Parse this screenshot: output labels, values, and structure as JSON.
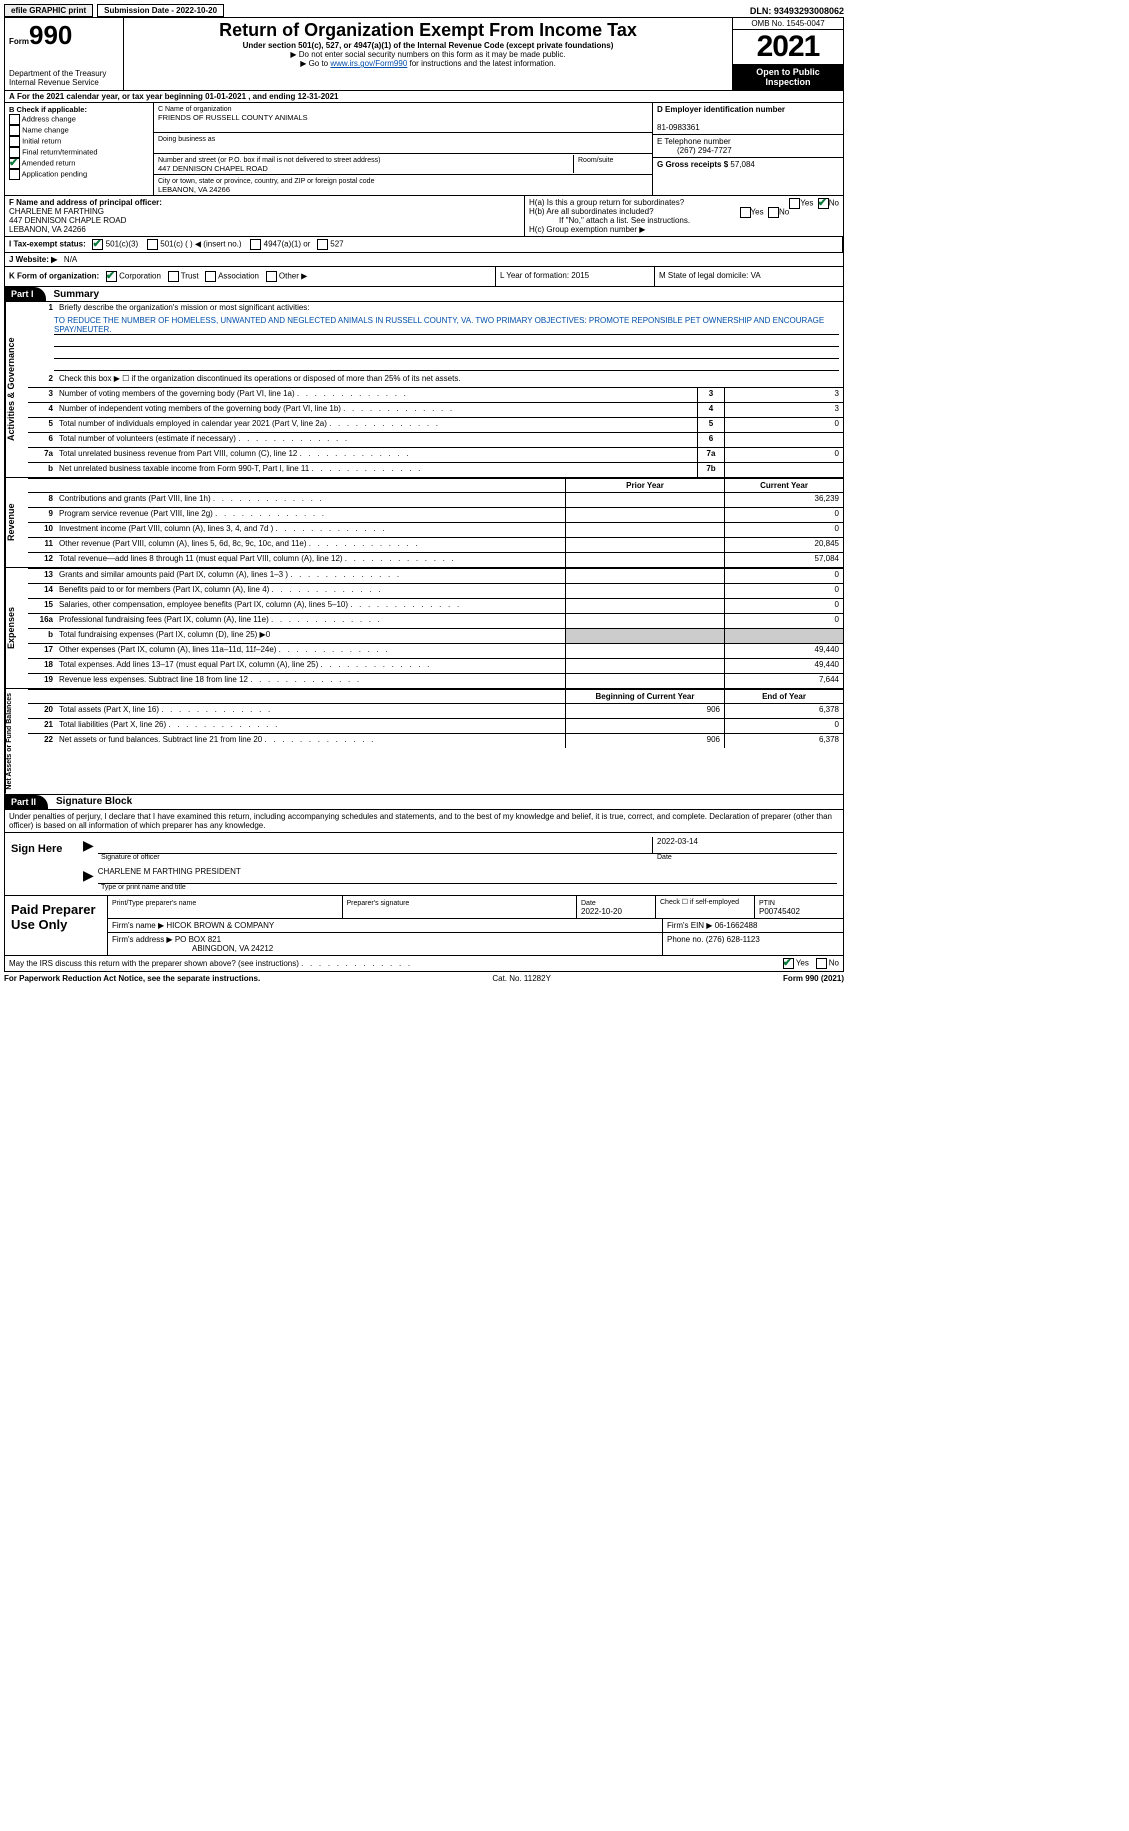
{
  "topbar": {
    "efile": "efile GRAPHIC print",
    "submission": "Submission Date - 2022-10-20",
    "dln": "DLN: 93493293008062"
  },
  "header": {
    "form_label": "Form",
    "form_num": "990",
    "dept": "Department of the Treasury",
    "irs": "Internal Revenue Service",
    "title": "Return of Organization Exempt From Income Tax",
    "sub1": "Under section 501(c), 527, or 4947(a)(1) of the Internal Revenue Code (except private foundations)",
    "sub2": "Do not enter social security numbers on this form as it may be made public.",
    "sub3_a": "Go to ",
    "sub3_link": "www.irs.gov/Form990",
    "sub3_b": " for instructions and the latest information.",
    "omb": "OMB No. 1545-0047",
    "year": "2021",
    "open": "Open to Public Inspection"
  },
  "lineA": "For the 2021 calendar year, or tax year beginning 01-01-2021    , and ending 12-31-2021",
  "boxB": {
    "title": "B Check if applicable:",
    "opts": [
      "Address change",
      "Name change",
      "Initial return",
      "Final return/terminated",
      "Amended return",
      "Application pending"
    ],
    "checked_idx": 4
  },
  "boxC": {
    "lbl_name": "C Name of organization",
    "name": "FRIENDS OF RUSSELL COUNTY ANIMALS",
    "lbl_dba": "Doing business as",
    "dba": "",
    "lbl_addr": "Number and street (or P.O. box if mail is not delivered to street address)",
    "addr": "447 DENNISON CHAPEL ROAD",
    "lbl_room": "Room/suite",
    "lbl_city": "City or town, state or province, country, and ZIP or foreign postal code",
    "city": "LEBANON, VA  24266"
  },
  "boxD": {
    "lbl": "D Employer identification number",
    "val": "81-0983361"
  },
  "boxE": {
    "lbl": "E Telephone number",
    "val": "(267) 294-7727"
  },
  "boxG": {
    "lbl": "G Gross receipts $",
    "val": "57,084"
  },
  "boxF": {
    "lbl": "F Name and address of principal officer:",
    "name": "CHARLENE M FARTHING",
    "addr1": "447 DENNISON CHAPLE ROAD",
    "addr2": "LEBANON, VA  24266"
  },
  "boxH": {
    "a": "H(a)  Is this a group return for subordinates?",
    "a_no": true,
    "b": "H(b)  Are all subordinates included?",
    "note": "If \"No,\" attach a list. See instructions.",
    "c": "H(c)  Group exemption number ▶"
  },
  "rowI": {
    "lbl": "I   Tax-exempt status:",
    "opts": [
      "501(c)(3)",
      "501(c) (  ) ◀ (insert no.)",
      "4947(a)(1) or",
      "527"
    ]
  },
  "rowJ": {
    "lbl": "J   Website: ▶",
    "val": "N/A"
  },
  "rowK": {
    "lbl": "K Form of organization:",
    "opts": [
      "Corporation",
      "Trust",
      "Association",
      "Other ▶"
    ],
    "L": "L Year of formation: 2015",
    "M": "M State of legal domicile: VA"
  },
  "part1": {
    "num": "Part I",
    "title": "Summary"
  },
  "tabs": [
    "Activities & Governance",
    "Revenue",
    "Expenses",
    "Net Assets or Fund Balances"
  ],
  "p1": {
    "l1": "Briefly describe the organization's mission or most significant activities:",
    "mission": "TO REDUCE THE NUMBER OF HOMELESS, UNWANTED AND NEGLECTED ANIMALS IN RUSSELL COUNTY, VA. TWO PRIMARY OBJECTIVES: PROMOTE REPONSIBLE PET OWNERSHIP AND ENCOURAGE SPAY/NEUTER.",
    "l2": "Check this box ▶ ☐ if the organization discontinued its operations or disposed of more than 25% of its net assets.",
    "rows_a": [
      {
        "n": "3",
        "t": "Number of voting members of the governing body (Part VI, line 1a)",
        "b": "3",
        "v": "3"
      },
      {
        "n": "4",
        "t": "Number of independent voting members of the governing body (Part VI, line 1b)",
        "b": "4",
        "v": "3"
      },
      {
        "n": "5",
        "t": "Total number of individuals employed in calendar year 2021 (Part V, line 2a)",
        "b": "5",
        "v": "0"
      },
      {
        "n": "6",
        "t": "Total number of volunteers (estimate if necessary)",
        "b": "6",
        "v": ""
      },
      {
        "n": "7a",
        "t": "Total unrelated business revenue from Part VIII, column (C), line 12",
        "b": "7a",
        "v": "0"
      },
      {
        "n": "b",
        "t": "Net unrelated business taxable income from Form 990-T, Part I, line 11",
        "b": "7b",
        "v": ""
      }
    ],
    "hdr_prior": "Prior Year",
    "hdr_curr": "Current Year",
    "rows_rev": [
      {
        "n": "8",
        "t": "Contributions and grants (Part VIII, line 1h)",
        "p": "",
        "c": "36,239"
      },
      {
        "n": "9",
        "t": "Program service revenue (Part VIII, line 2g)",
        "p": "",
        "c": "0"
      },
      {
        "n": "10",
        "t": "Investment income (Part VIII, column (A), lines 3, 4, and 7d )",
        "p": "",
        "c": "0"
      },
      {
        "n": "11",
        "t": "Other revenue (Part VIII, column (A), lines 5, 6d, 8c, 9c, 10c, and 11e)",
        "p": "",
        "c": "20,845"
      },
      {
        "n": "12",
        "t": "Total revenue—add lines 8 through 11 (must equal Part VIII, column (A), line 12)",
        "p": "",
        "c": "57,084"
      }
    ],
    "rows_exp": [
      {
        "n": "13",
        "t": "Grants and similar amounts paid (Part IX, column (A), lines 1–3 )",
        "p": "",
        "c": "0"
      },
      {
        "n": "14",
        "t": "Benefits paid to or for members (Part IX, column (A), line 4)",
        "p": "",
        "c": "0"
      },
      {
        "n": "15",
        "t": "Salaries, other compensation, employee benefits (Part IX, column (A), lines 5–10)",
        "p": "",
        "c": "0"
      },
      {
        "n": "16a",
        "t": "Professional fundraising fees (Part IX, column (A), line 11e)",
        "p": "",
        "c": "0"
      },
      {
        "n": "b",
        "t": "Total fundraising expenses (Part IX, column (D), line 25) ▶0",
        "p": "grey",
        "c": "grey"
      },
      {
        "n": "17",
        "t": "Other expenses (Part IX, column (A), lines 11a–11d, 11f–24e)",
        "p": "",
        "c": "49,440"
      },
      {
        "n": "18",
        "t": "Total expenses. Add lines 13–17 (must equal Part IX, column (A), line 25)",
        "p": "",
        "c": "49,440"
      },
      {
        "n": "19",
        "t": "Revenue less expenses. Subtract line 18 from line 12",
        "p": "",
        "c": "7,644"
      }
    ],
    "hdr_beg": "Beginning of Current Year",
    "hdr_end": "End of Year",
    "rows_net": [
      {
        "n": "20",
        "t": "Total assets (Part X, line 16)",
        "p": "906",
        "c": "6,378"
      },
      {
        "n": "21",
        "t": "Total liabilities (Part X, line 26)",
        "p": "",
        "c": "0"
      },
      {
        "n": "22",
        "t": "Net assets or fund balances. Subtract line 21 from line 20",
        "p": "906",
        "c": "6,378"
      }
    ]
  },
  "part2": {
    "num": "Part II",
    "title": "Signature Block"
  },
  "sig": {
    "intro": "Under penalties of perjury, I declare that I have examined this return, including accompanying schedules and statements, and to the best of my knowledge and belief, it is true, correct, and complete. Declaration of preparer (other than officer) is based on all information of which preparer has any knowledge.",
    "here": "Sign Here",
    "lbl_sig": "Signature of officer",
    "lbl_date": "Date",
    "date": "2022-03-14",
    "name": "CHARLENE M FARTHING  PRESIDENT",
    "lbl_name": "Type or print name and title"
  },
  "paid": {
    "title": "Paid Preparer Use Only",
    "h_name": "Print/Type preparer's name",
    "h_sig": "Preparer's signature",
    "h_date": "Date",
    "date": "2022-10-20",
    "h_self": "Check ☐ if self-employed",
    "h_ptin": "PTIN",
    "ptin": "P00745402",
    "firm_lbl": "Firm's name    ▶",
    "firm": "HICOK BROWN & COMPANY",
    "ein_lbl": "Firm's EIN ▶",
    "ein": "06-1662488",
    "addr_lbl": "Firm's address ▶",
    "addr1": "PO BOX 821",
    "addr2": "ABINGDON, VA  24212",
    "phone_lbl": "Phone no.",
    "phone": "(276) 628-1123"
  },
  "bottom": {
    "q": "May the IRS discuss this return with the preparer shown above? (see instructions)",
    "yes": true
  },
  "foot": {
    "l": "For Paperwork Reduction Act Notice, see the separate instructions.",
    "m": "Cat. No. 11282Y",
    "r": "Form 990 (2021)"
  }
}
